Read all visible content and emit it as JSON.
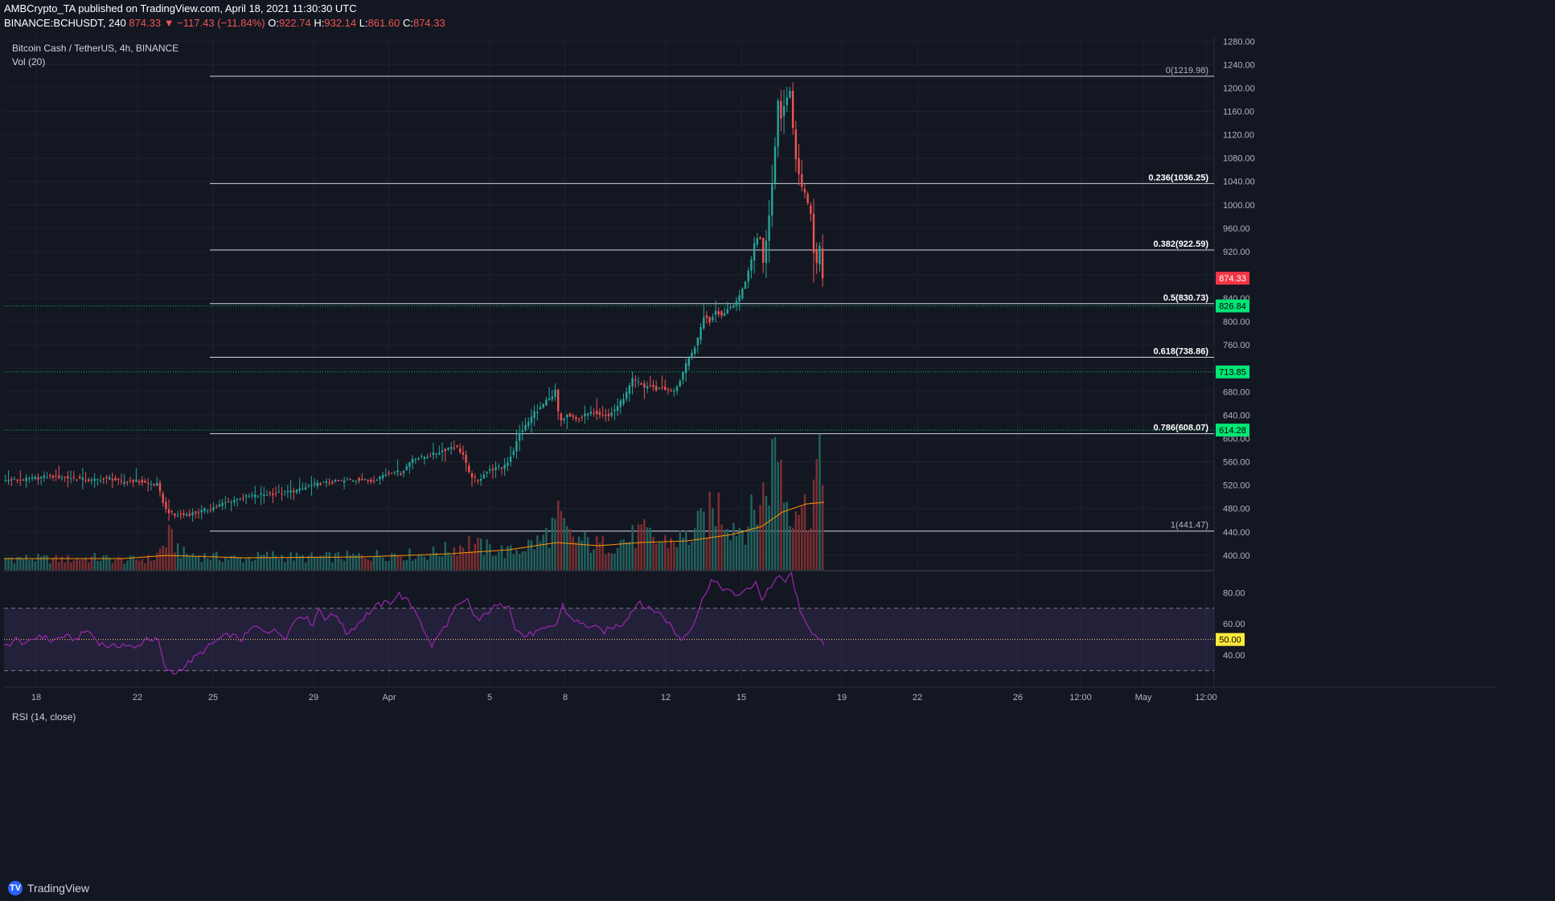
{
  "header": {
    "line1": "AMBCrypto_TA published on TradingView.com, April 18, 2021 11:30:30 UTC",
    "symbol": "BINANCE:BCHUSDT, 240",
    "last": "874.33",
    "change": "▼ −117.43 (−11.84%)",
    "o_label": "O:",
    "o": "922.74",
    "h_label": "H:",
    "h": "932.14",
    "l_label": "L:",
    "l": "861.60",
    "c_label": "C:",
    "c": "874.33"
  },
  "legend": {
    "title": "Bitcoin Cash / TetherUS, 4h, BINANCE",
    "volume": "Vol (20)",
    "rsi": "RSI (14, close)"
  },
  "footer": {
    "brand": "TradingView"
  },
  "colors": {
    "background": "#131722",
    "up": "#26a69a",
    "down": "#ef5350",
    "rsi": "#9c27b0",
    "green_label": "#00e676",
    "red_label": "#f23645",
    "yellow_label": "#ffeb3b"
  },
  "chart_data": {
    "type": "candlestick",
    "price_axis": {
      "ylim": [
        375,
        1290
      ],
      "ticks": [
        "400.00",
        "440.00",
        "480.00",
        "520.00",
        "560.00",
        "600.00",
        "640.00",
        "680.00",
        "720.00",
        "760.00",
        "800.00",
        "840.00",
        "880.00",
        "920.00",
        "960.00",
        "1000.00",
        "1040.00",
        "1080.00",
        "1120.00",
        "1160.00",
        "1200.00",
        "1240.00",
        "1280.00"
      ],
      "tick_values": [
        400,
        440,
        480,
        520,
        560,
        600,
        640,
        680,
        720,
        760,
        800,
        840,
        880,
        920,
        960,
        1000,
        1040,
        1080,
        1120,
        1160,
        1200,
        1240,
        1280
      ]
    },
    "rsi_axis": {
      "ticks": [
        "40.00",
        "60.00",
        "80.00"
      ],
      "tick_values": [
        40,
        60,
        80
      ],
      "ylim": [
        20,
        93
      ],
      "upper": 70,
      "lower": 30,
      "middle": 50
    },
    "time_labels": [
      "18",
      "22",
      "25",
      "29",
      "Apr",
      "5",
      "8",
      "12",
      "15",
      "19",
      "22",
      "26",
      "12:00",
      "May",
      "12:00"
    ],
    "fib_levels": [
      {
        "label": "0(1219.98)",
        "value": 1219.98
      },
      {
        "label": "0.236(1036.25)",
        "value": 1036.25
      },
      {
        "label": "0.382(922.59)",
        "value": 922.59
      },
      {
        "label": "0.5(830.73)",
        "value": 830.73
      },
      {
        "label": "0.618(738.86)",
        "value": 738.86
      },
      {
        "label": "0.786(608.07)",
        "value": 608.07
      },
      {
        "label": "1(441.47)",
        "value": 441.47
      }
    ],
    "horizontal_levels": [
      {
        "label": "826.84",
        "value": 826.84
      },
      {
        "label": "713.85",
        "value": 713.85
      },
      {
        "label": "614.28",
        "value": 614.28
      }
    ],
    "last_price": {
      "label": "874.33",
      "value": 874.33
    },
    "rsi_mid_label": "50.00",
    "price_path": [
      [
        0,
        528
      ],
      [
        8,
        530
      ],
      [
        16,
        535
      ],
      [
        24,
        532
      ],
      [
        30,
        528
      ],
      [
        36,
        532
      ],
      [
        40,
        525
      ],
      [
        44,
        528
      ],
      [
        48,
        524
      ],
      [
        52,
        521
      ],
      [
        55,
        478
      ],
      [
        58,
        468
      ],
      [
        62,
        470
      ],
      [
        66,
        474
      ],
      [
        70,
        480
      ],
      [
        74,
        488
      ],
      [
        78,
        495
      ],
      [
        82,
        500
      ],
      [
        86,
        503
      ],
      [
        90,
        505
      ],
      [
        95,
        508
      ],
      [
        100,
        512
      ],
      [
        104,
        520
      ],
      [
        110,
        525
      ],
      [
        116,
        528
      ],
      [
        120,
        530
      ],
      [
        124,
        527
      ],
      [
        128,
        537
      ],
      [
        132,
        545
      ],
      [
        134,
        540
      ],
      [
        136,
        552
      ],
      [
        138,
        566
      ],
      [
        142,
        568
      ],
      [
        146,
        575
      ],
      [
        149,
        581
      ],
      [
        151,
        586
      ],
      [
        153,
        584
      ],
      [
        155,
        572
      ],
      [
        157,
        540
      ],
      [
        160,
        526
      ],
      [
        162,
        540
      ],
      [
        165,
        548
      ],
      [
        168,
        550
      ],
      [
        170,
        560
      ],
      [
        172,
        580
      ],
      [
        174,
        608
      ],
      [
        177,
        628
      ],
      [
        179,
        645
      ],
      [
        181,
        652
      ],
      [
        183,
        664
      ],
      [
        185,
        670
      ],
      [
        186,
        682
      ],
      [
        187,
        645
      ],
      [
        188,
        630
      ],
      [
        190,
        640
      ],
      [
        193,
        632
      ],
      [
        196,
        640
      ],
      [
        199,
        645
      ],
      [
        202,
        642
      ],
      [
        204,
        638
      ],
      [
        206,
        650
      ],
      [
        208,
        662
      ],
      [
        210,
        678
      ],
      [
        212,
        700
      ],
      [
        214,
        695
      ],
      [
        216,
        688
      ],
      [
        218,
        690
      ],
      [
        220,
        684
      ],
      [
        222,
        688
      ],
      [
        224,
        682
      ],
      [
        226,
        680
      ],
      [
        228,
        700
      ],
      [
        230,
        726
      ],
      [
        232,
        745
      ],
      [
        234,
        770
      ],
      [
        236,
        810
      ],
      [
        238,
        800
      ],
      [
        240,
        820
      ],
      [
        242,
        810
      ],
      [
        244,
        822
      ],
      [
        246,
        830
      ],
      [
        248,
        842
      ],
      [
        250,
        870
      ],
      [
        252,
        905
      ],
      [
        253,
        935
      ],
      [
        254,
        945
      ],
      [
        255,
        940
      ],
      [
        256,
        900
      ],
      [
        257,
        940
      ],
      [
        258,
        982
      ],
      [
        259,
        1036
      ],
      [
        260,
        1100
      ],
      [
        261,
        1180
      ],
      [
        262,
        1150
      ],
      [
        263,
        1170
      ],
      [
        264,
        1185
      ],
      [
        265,
        1195
      ],
      [
        266,
        1130
      ],
      [
        267,
        1080
      ],
      [
        268,
        1055
      ],
      [
        269,
        1030
      ],
      [
        270,
        1020
      ],
      [
        271,
        1000
      ],
      [
        272,
        985
      ],
      [
        273,
        920
      ],
      [
        274,
        900
      ],
      [
        275,
        928
      ],
      [
        276,
        874.33
      ]
    ],
    "volume_series": [
      [
        0,
        15
      ],
      [
        10,
        14
      ],
      [
        20,
        13
      ],
      [
        30,
        15
      ],
      [
        40,
        12
      ],
      [
        50,
        14
      ],
      [
        55,
        40
      ],
      [
        60,
        20
      ],
      [
        70,
        16
      ],
      [
        80,
        14
      ],
      [
        90,
        18
      ],
      [
        100,
        15
      ],
      [
        110,
        16
      ],
      [
        120,
        17
      ],
      [
        130,
        20
      ],
      [
        140,
        18
      ],
      [
        150,
        26
      ],
      [
        156,
        34
      ],
      [
        160,
        28
      ],
      [
        170,
        22
      ],
      [
        175,
        30
      ],
      [
        180,
        35
      ],
      [
        184,
        52
      ],
      [
        186,
        62
      ],
      [
        190,
        40
      ],
      [
        200,
        30
      ],
      [
        210,
        38
      ],
      [
        214,
        46
      ],
      [
        220,
        34
      ],
      [
        230,
        40
      ],
      [
        236,
        64
      ],
      [
        240,
        80
      ],
      [
        244,
        60
      ],
      [
        248,
        52
      ],
      [
        252,
        70
      ],
      [
        256,
        100
      ],
      [
        260,
        168
      ],
      [
        262,
        100
      ],
      [
        264,
        80
      ],
      [
        266,
        90
      ],
      [
        270,
        70
      ],
      [
        273,
        124
      ],
      [
        275,
        110
      ],
      [
        276,
        82
      ]
    ],
    "volume_ma": [
      [
        0,
        14
      ],
      [
        40,
        14
      ],
      [
        55,
        18
      ],
      [
        80,
        15
      ],
      [
        120,
        16
      ],
      [
        150,
        20
      ],
      [
        170,
        25
      ],
      [
        186,
        34
      ],
      [
        200,
        30
      ],
      [
        214,
        34
      ],
      [
        230,
        36
      ],
      [
        245,
        44
      ],
      [
        255,
        54
      ],
      [
        262,
        72
      ],
      [
        270,
        82
      ],
      [
        276,
        84
      ]
    ],
    "rsi_path": [
      [
        0,
        45
      ],
      [
        4,
        50
      ],
      [
        8,
        47
      ],
      [
        12,
        53
      ],
      [
        16,
        49
      ],
      [
        20,
        52
      ],
      [
        24,
        50
      ],
      [
        28,
        56
      ],
      [
        32,
        48
      ],
      [
        36,
        45
      ],
      [
        40,
        47
      ],
      [
        44,
        44
      ],
      [
        48,
        51
      ],
      [
        52,
        49
      ],
      [
        54,
        32
      ],
      [
        57,
        28
      ],
      [
        60,
        32
      ],
      [
        64,
        38
      ],
      [
        68,
        44
      ],
      [
        72,
        50
      ],
      [
        76,
        53
      ],
      [
        80,
        50
      ],
      [
        84,
        58
      ],
      [
        88,
        56
      ],
      [
        92,
        55
      ],
      [
        95,
        52
      ],
      [
        98,
        63
      ],
      [
        100,
        66
      ],
      [
        104,
        60
      ],
      [
        106,
        70
      ],
      [
        108,
        64
      ],
      [
        112,
        66
      ],
      [
        115,
        54
      ],
      [
        118,
        58
      ],
      [
        122,
        66
      ],
      [
        126,
        72
      ],
      [
        130,
        74
      ],
      [
        133,
        79
      ],
      [
        136,
        74
      ],
      [
        138,
        70
      ],
      [
        140,
        63
      ],
      [
        142,
        52
      ],
      [
        144,
        46
      ],
      [
        146,
        52
      ],
      [
        149,
        60
      ],
      [
        152,
        70
      ],
      [
        156,
        75
      ],
      [
        158,
        66
      ],
      [
        160,
        62
      ],
      [
        164,
        70
      ],
      [
        168,
        72
      ],
      [
        170,
        73
      ],
      [
        172,
        57
      ],
      [
        175,
        52
      ],
      [
        178,
        54
      ],
      [
        182,
        56
      ],
      [
        186,
        60
      ],
      [
        188,
        72
      ],
      [
        190,
        65
      ],
      [
        194,
        60
      ],
      [
        198,
        58
      ],
      [
        202,
        55
      ],
      [
        205,
        58
      ],
      [
        208,
        60
      ],
      [
        210,
        65
      ],
      [
        212,
        70
      ],
      [
        214,
        75
      ],
      [
        216,
        70
      ],
      [
        220,
        68
      ],
      [
        224,
        60
      ],
      [
        226,
        54
      ],
      [
        228,
        50
      ],
      [
        232,
        60
      ],
      [
        236,
        80
      ],
      [
        238,
        88
      ],
      [
        240,
        85
      ],
      [
        243,
        82
      ],
      [
        246,
        78
      ],
      [
        248,
        80
      ],
      [
        251,
        82
      ],
      [
        253,
        88
      ],
      [
        255,
        75
      ],
      [
        257,
        82
      ],
      [
        259,
        86
      ],
      [
        261,
        90
      ],
      [
        263,
        87
      ],
      [
        265,
        92
      ],
      [
        266,
        84
      ],
      [
        268,
        66
      ],
      [
        270,
        62
      ],
      [
        272,
        55
      ],
      [
        274,
        49
      ],
      [
        276,
        47
      ]
    ]
  }
}
